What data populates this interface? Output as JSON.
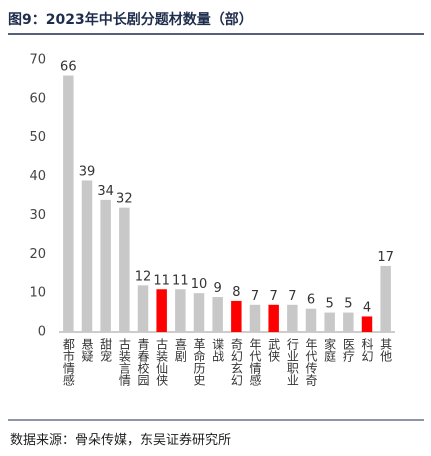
{
  "chart_data": {
    "type": "bar",
    "title": "图9：2023年中长剧分题材数量（部）",
    "source": "数据来源：骨朵传媒，东吴证券研究所",
    "categories": [
      "都市情感",
      "悬疑",
      "甜宠",
      "古装言情",
      "青春校园",
      "古装仙侠",
      "喜剧",
      "革命历史",
      "谍战",
      "奇幻玄幻",
      "年代情感",
      "武侠",
      "行业职业",
      "年代传奇",
      "家庭",
      "医疗",
      "科幻",
      "其他"
    ],
    "values": [
      66,
      39,
      34,
      32,
      12,
      11,
      11,
      10,
      9,
      8,
      7,
      7,
      7,
      6,
      5,
      5,
      4,
      17
    ],
    "colors": [
      "#c8c8c8",
      "#c8c8c8",
      "#c8c8c8",
      "#c8c8c8",
      "#c8c8c8",
      "#ff0000",
      "#c8c8c8",
      "#c8c8c8",
      "#c8c8c8",
      "#ff0000",
      "#c8c8c8",
      "#ff0000",
      "#c8c8c8",
      "#c8c8c8",
      "#c8c8c8",
      "#c8c8c8",
      "#ff0000",
      "#c8c8c8"
    ],
    "ylim": [
      0,
      70
    ],
    "yticks": [
      0,
      10,
      20,
      30,
      40,
      50,
      60,
      70
    ],
    "grid": false
  }
}
